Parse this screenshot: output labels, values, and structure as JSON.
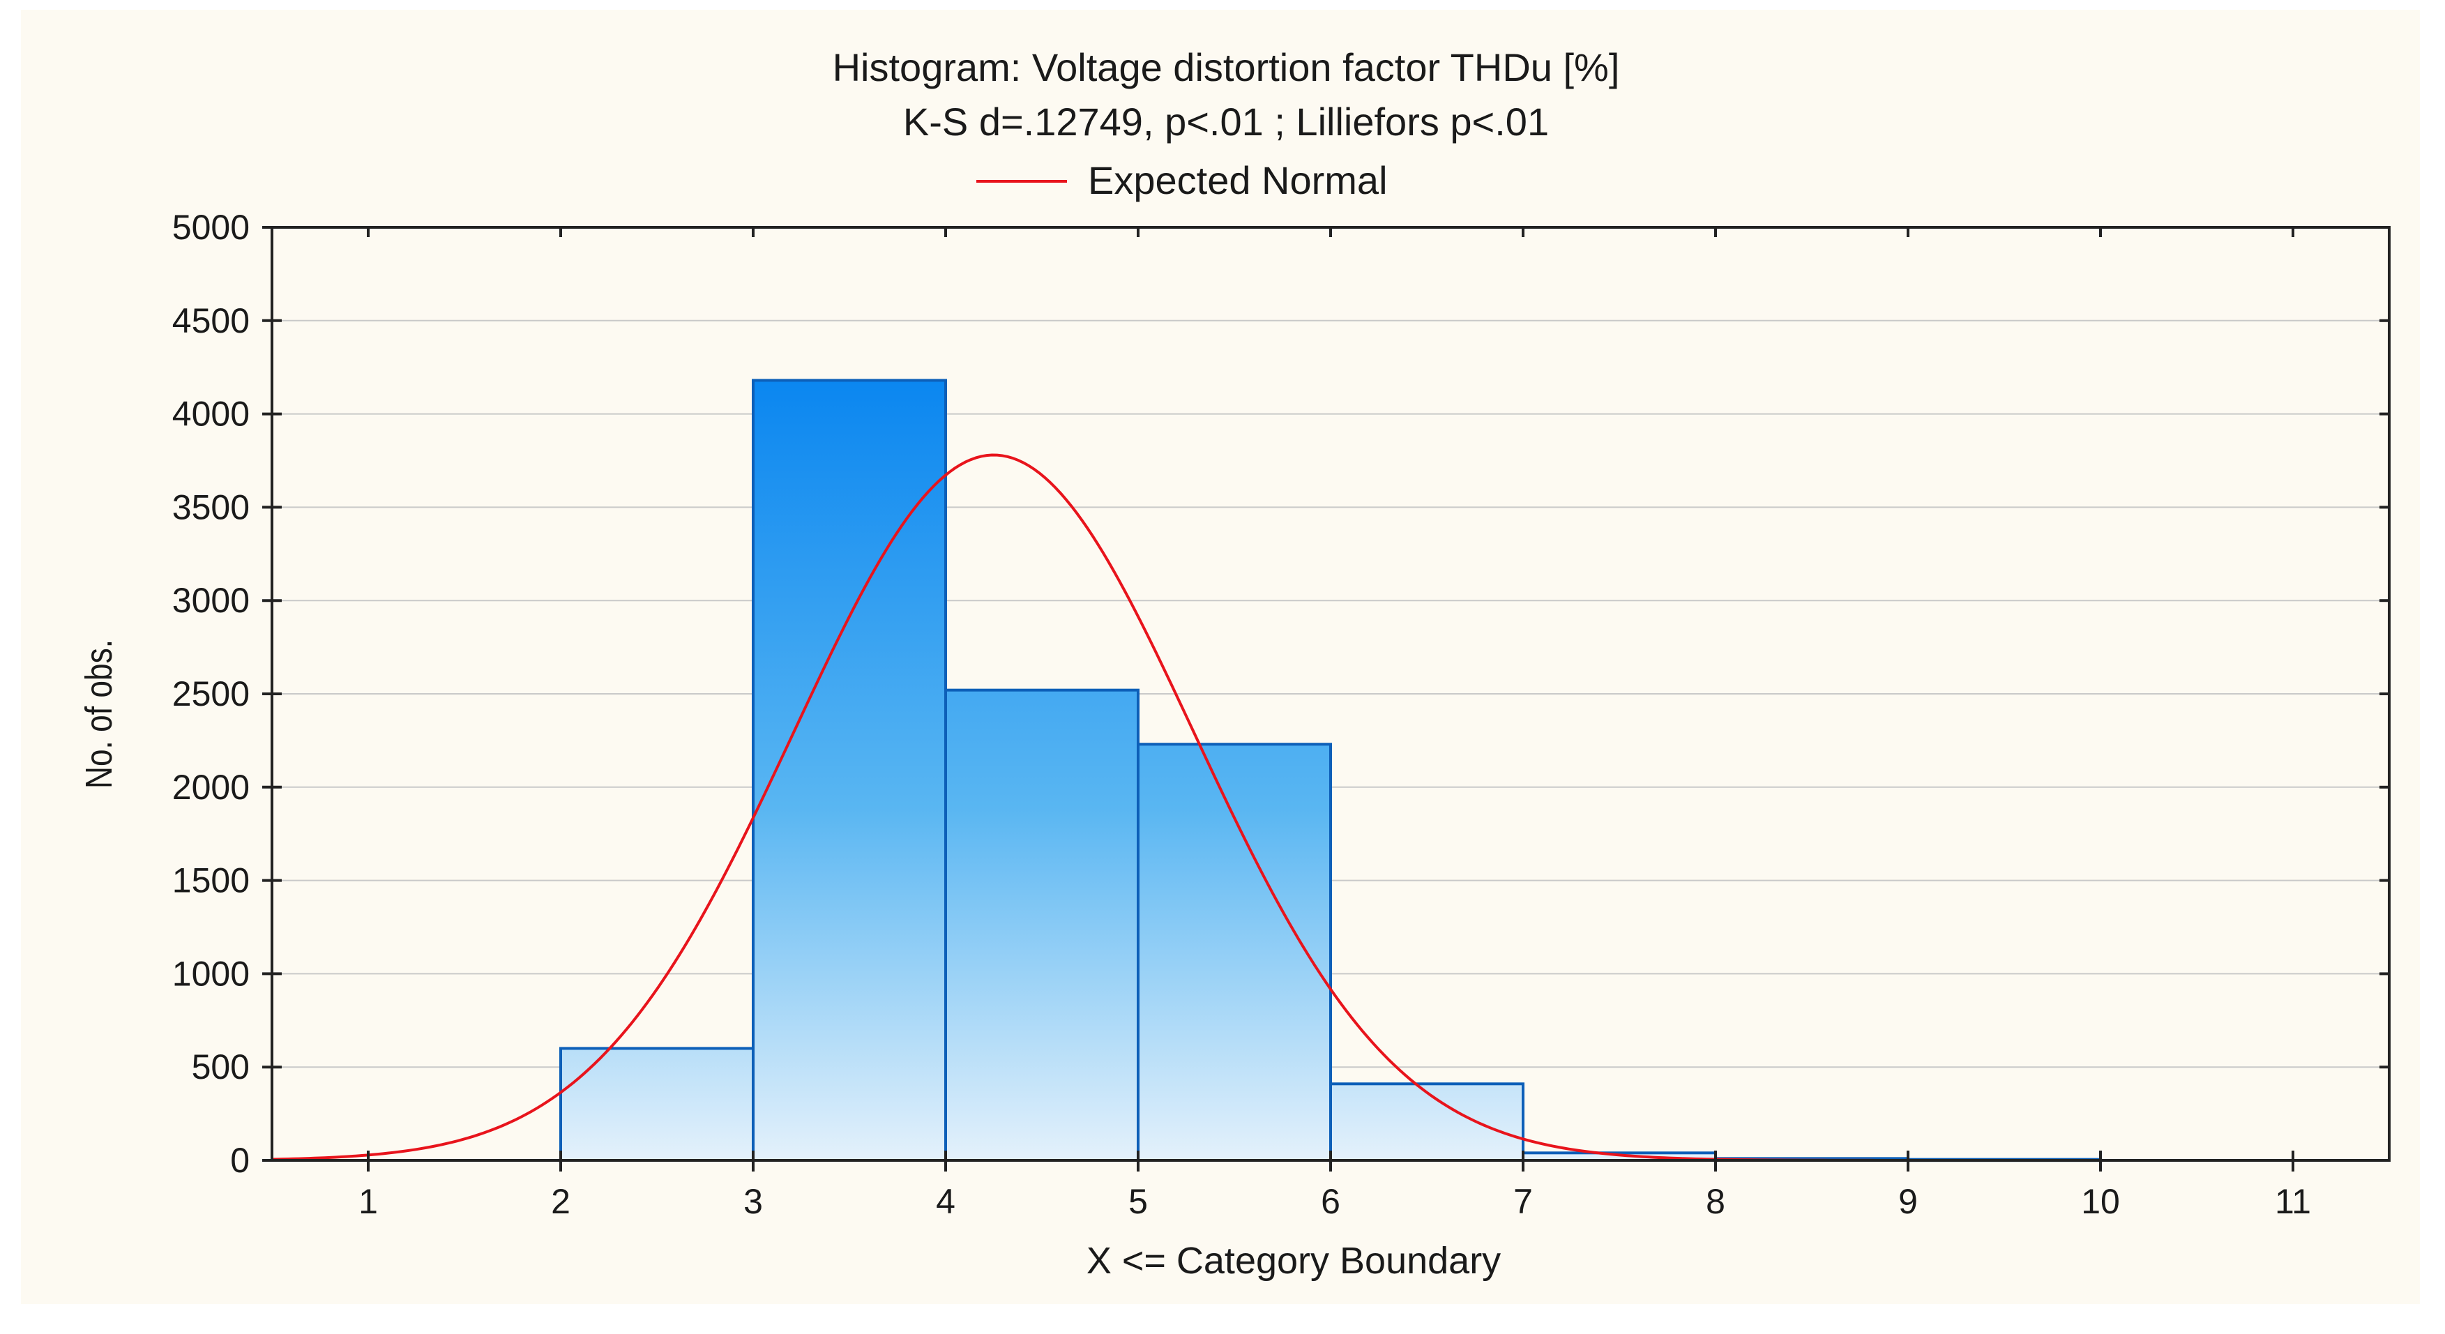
{
  "chart_data": {
    "type": "bar",
    "title": "Histogram: Voltage distortion factor THDu [%]",
    "subtitle": "K-S d=.12749, p<.01 ; Lilliefors p<.01",
    "legend": [
      {
        "name": "Expected Normal",
        "color": "#e8141c"
      }
    ],
    "xlabel": "X <= Category Boundary",
    "ylabel": "No. of obs.",
    "xlim": [
      0.5,
      11.5
    ],
    "ylim": [
      0,
      5000
    ],
    "x_ticks": [
      1,
      2,
      3,
      4,
      5,
      6,
      7,
      8,
      9,
      10,
      11
    ],
    "y_ticks": [
      0,
      500,
      1000,
      1500,
      2000,
      2500,
      3000,
      3500,
      4000,
      4500,
      5000
    ],
    "bins": [
      {
        "from": 2,
        "to": 3,
        "value": 600
      },
      {
        "from": 3,
        "to": 4,
        "value": 4180
      },
      {
        "from": 4,
        "to": 5,
        "value": 2520
      },
      {
        "from": 5,
        "to": 6,
        "value": 2230
      },
      {
        "from": 6,
        "to": 7,
        "value": 410
      },
      {
        "from": 7,
        "to": 8,
        "value": 40
      },
      {
        "from": 8,
        "to": 9,
        "value": 10
      },
      {
        "from": 9,
        "to": 10,
        "value": 5
      }
    ],
    "expected_normal": {
      "mean": 4.25,
      "sd": 1.04,
      "peak": 3780
    },
    "grid": true,
    "colors": {
      "bar_top": "#0a86f0",
      "bar_bottom": "#e4f1fb",
      "bar_edge": "#0d5fb8",
      "curve": "#e8141c"
    }
  }
}
